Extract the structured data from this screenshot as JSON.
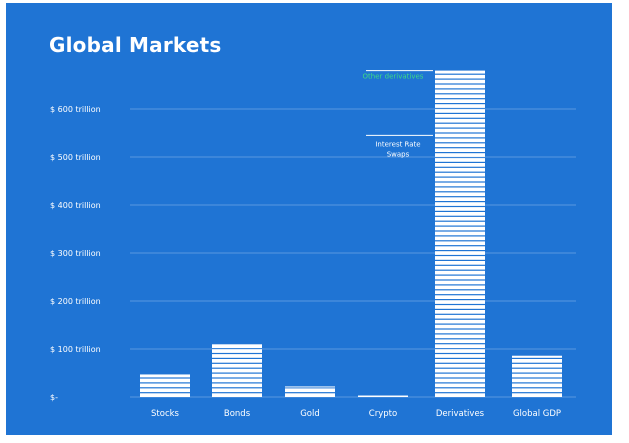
{
  "chart_data": {
    "type": "bar",
    "title": "Global Markets",
    "categories": [
      "Stocks",
      "Bonds",
      "Gold",
      "Crypto",
      "Derivatives",
      "Global GDP"
    ],
    "values": [
      47,
      110,
      22,
      3,
      680,
      86
    ],
    "unit": "trillion USD",
    "ylim": [
      0,
      680
    ],
    "yticks": [
      0,
      100,
      200,
      300,
      400,
      500,
      600
    ],
    "ytick_labels": [
      "$-",
      "$ 100 trillion",
      "$ 200 trillion",
      "$ 300 trillion",
      "$ 400 trillion",
      "$ 500 trillion",
      "$ 600 trillion"
    ],
    "grid": true,
    "annotations": [
      {
        "category": "Derivatives",
        "value": 680,
        "text": "Other derivatives",
        "color": "#3ddc84"
      },
      {
        "category": "Derivatives",
        "value": 545,
        "text_lines": [
          "Interest Rate",
          "Swaps"
        ],
        "color": "#ffffff"
      }
    ],
    "colors": {
      "background": "#1f74d4",
      "bar": "#ffffff",
      "grid": "#6fa6e6",
      "annotation_green": "#3ddc84"
    }
  }
}
